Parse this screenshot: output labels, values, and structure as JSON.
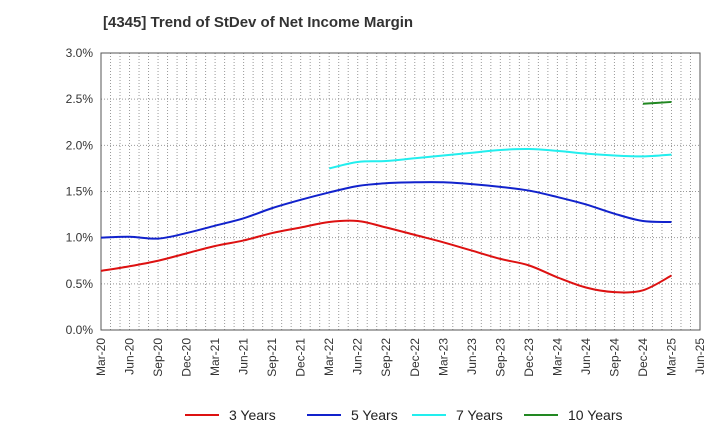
{
  "chart_data": {
    "type": "line",
    "title": "[4345]  Trend of StDev of Net Income Margin",
    "xlabel": "",
    "ylabel": "",
    "ylim": [
      0,
      3.0
    ],
    "y_ticks": [
      "0.0%",
      "0.5%",
      "1.0%",
      "1.5%",
      "2.0%",
      "2.5%",
      "3.0%"
    ],
    "x_ticks": [
      "Mar-20",
      "Jun-20",
      "Sep-20",
      "Dec-20",
      "Mar-21",
      "Jun-21",
      "Sep-21",
      "Dec-21",
      "Mar-22",
      "Jun-22",
      "Sep-22",
      "Dec-22",
      "Mar-23",
      "Jun-23",
      "Sep-23",
      "Dec-23",
      "Mar-24",
      "Jun-24",
      "Sep-24",
      "Dec-24",
      "Mar-25",
      "Jun-25"
    ],
    "grid": true,
    "legend_position": "bottom",
    "series": [
      {
        "name": "3 Years",
        "color": "#dd1111",
        "x": [
          "Mar-20",
          "Jun-20",
          "Sep-20",
          "Dec-20",
          "Mar-21",
          "Jun-21",
          "Sep-21",
          "Dec-21",
          "Mar-22",
          "Jun-22",
          "Sep-22",
          "Dec-22",
          "Mar-23",
          "Jun-23",
          "Sep-23",
          "Dec-23",
          "Mar-24",
          "Jun-24",
          "Sep-24",
          "Dec-24",
          "Mar-25"
        ],
        "values": [
          0.64,
          0.69,
          0.75,
          0.83,
          0.91,
          0.97,
          1.05,
          1.11,
          1.17,
          1.18,
          1.11,
          1.03,
          0.95,
          0.86,
          0.77,
          0.7,
          0.57,
          0.46,
          0.41,
          0.43,
          0.59
        ]
      },
      {
        "name": "5 Years",
        "color": "#1122cc",
        "x": [
          "Mar-20",
          "Jun-20",
          "Sep-20",
          "Dec-20",
          "Mar-21",
          "Jun-21",
          "Sep-21",
          "Dec-21",
          "Mar-22",
          "Jun-22",
          "Sep-22",
          "Dec-22",
          "Mar-23",
          "Jun-23",
          "Sep-23",
          "Dec-23",
          "Mar-24",
          "Jun-24",
          "Sep-24",
          "Dec-24",
          "Mar-25"
        ],
        "values": [
          1.0,
          1.01,
          0.99,
          1.05,
          1.13,
          1.21,
          1.32,
          1.41,
          1.49,
          1.56,
          1.59,
          1.6,
          1.6,
          1.58,
          1.55,
          1.51,
          1.44,
          1.36,
          1.26,
          1.18,
          1.17
        ]
      },
      {
        "name": "7 Years",
        "color": "#22eeee",
        "x": [
          "Mar-22",
          "Jun-22",
          "Sep-22",
          "Dec-22",
          "Mar-23",
          "Jun-23",
          "Sep-23",
          "Dec-23",
          "Mar-24",
          "Jun-24",
          "Sep-24",
          "Dec-24",
          "Mar-25"
        ],
        "values": [
          1.75,
          1.82,
          1.83,
          1.86,
          1.89,
          1.92,
          1.95,
          1.96,
          1.94,
          1.91,
          1.89,
          1.88,
          1.9
        ]
      },
      {
        "name": "10 Years",
        "color": "#228822",
        "x": [
          "Dec-24",
          "Mar-25"
        ],
        "values": [
          2.45,
          2.47
        ]
      }
    ]
  }
}
